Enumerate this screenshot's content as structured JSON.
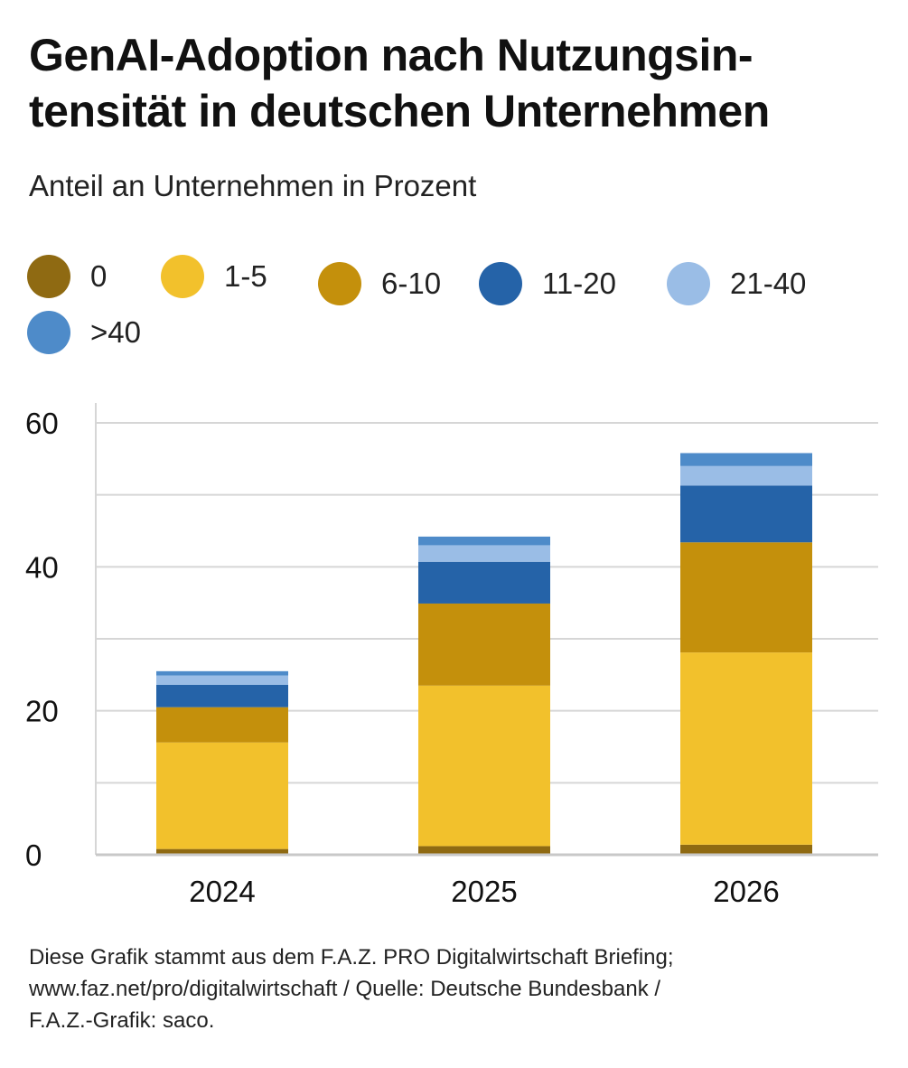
{
  "title": "GenAI-Adoption nach Nutzungsin-tensität in deutschen Unternehmen",
  "title_lines": [
    "GenAI-Adoption nach Nutzungsin-",
    "tensität in deutschen Unternehmen"
  ],
  "subtitle": "Anteil an Unternehmen in Prozent",
  "footer_lines": [
    "Diese Grafik stammt aus dem F.A.Z. PRO Digitalwirtschaft Briefing;",
    "www.faz.net/pro/digitalwirtschaft / Quelle: Deutsche Bundesbank /",
    "F.A.Z.-Grafik: saco."
  ],
  "chart_data": {
    "type": "bar",
    "stacked": true,
    "title": "GenAI-Adoption nach Nutzungsintensität in deutschen Unternehmen",
    "subtitle": "Anteil an Unternehmen in Prozent",
    "categories": [
      "2024",
      "2025",
      "2026"
    ],
    "series": [
      {
        "name": "0",
        "color": "#8f6a12",
        "values": [
          0.8,
          1.2,
          1.4
        ]
      },
      {
        "name": "1-5",
        "color": "#f2c12c",
        "values": [
          14.8,
          22.3,
          26.7
        ]
      },
      {
        "name": "6-10",
        "color": "#c4900c",
        "values": [
          4.9,
          11.4,
          15.3
        ]
      },
      {
        "name": "11-20",
        "color": "#2563a8",
        "values": [
          3.1,
          5.8,
          7.9
        ]
      },
      {
        "name": "21-40",
        "color": "#9abde6",
        "values": [
          1.3,
          2.3,
          2.7
        ]
      },
      {
        "name": ">40",
        "color": "#4e8bc9",
        "values": [
          0.6,
          1.2,
          1.8
        ]
      }
    ],
    "xlabel": "",
    "ylabel": "",
    "ylim": [
      0,
      60
    ],
    "yticks": [
      0,
      20,
      40,
      60
    ],
    "grid": true,
    "legend": "top"
  }
}
